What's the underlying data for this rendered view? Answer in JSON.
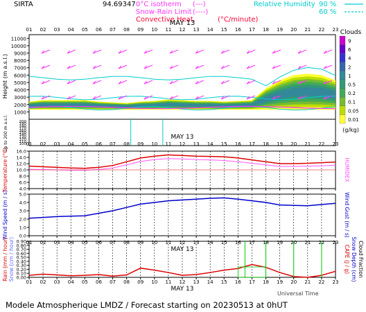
{
  "header": {
    "site": "SIRTA",
    "site_code": "94.69347",
    "legend": [
      {
        "label": "0°C isotherm",
        "marker": "(---)",
        "color": "#ff33ff"
      },
      {
        "label": "Snow-Rain Limit",
        "marker": "(----)",
        "color": "#ff33ff"
      },
      {
        "label": "Convective Heat.",
        "marker": "(°C/minute)",
        "color": "#ff0033"
      },
      {
        "label": "Relative Humidity",
        "values": [
          "90 %",
          "60 %"
        ],
        "color": "#00cccc"
      }
    ]
  },
  "footer": {
    "title": "Modele Atmospherique LMDZ / Forecast starting on 20230513 at 0hUT",
    "universal_time": "Universal Time"
  },
  "date_label": "MAY 13",
  "hours": [
    "01",
    "02",
    "03",
    "04",
    "05",
    "06",
    "07",
    "08",
    "09",
    "10",
    "11",
    "12",
    "13",
    "14",
    "15",
    "16",
    "17",
    "18",
    "19",
    "20",
    "21",
    "22",
    "23"
  ],
  "colors": {
    "temperature": "#dd0000",
    "humidex": "#ff55ff",
    "wind": "#0000cc",
    "rain": "#dd0000",
    "snow_frac": "#00cc00",
    "grid": "#000000"
  },
  "chart_data": [
    {
      "type": "heatmap",
      "name": "clouds",
      "ylabel": "Height (m a.s.l.)",
      "ylabel_low": "Up to 200 m a.s.l.",
      "yticks": [
        11000,
        10000,
        9000,
        8000,
        7000,
        6000,
        5000,
        4000,
        3000,
        2000,
        1000
      ],
      "yticks_low": [
        200,
        190,
        180,
        170,
        160,
        150,
        140,
        130,
        120,
        110,
        100
      ],
      "legend_title": "Clouds",
      "legend_unit": "(g/kg)",
      "legend_ticks": [
        "9",
        "6",
        "4",
        "2",
        "1",
        "0.5",
        "0.2",
        "0.1",
        "0.05",
        "0.01"
      ],
      "legend_colors": [
        "#cc00cc",
        "#6600cc",
        "#3333cc",
        "#3366aa",
        "#338899",
        "#339977",
        "#44aa55",
        "#77bb33",
        "#bbdd00",
        "#ffff33"
      ],
      "cloud_base_m": [
        1300,
        1300,
        1300,
        1300,
        1300,
        1300,
        1300,
        1300,
        1300,
        1300,
        1300,
        1300,
        1300,
        1300,
        1300,
        1300,
        1300,
        1300,
        1300,
        1300,
        1300,
        1300,
        1300
      ],
      "cloud_top_m": [
        2400,
        2600,
        2600,
        2600,
        2600,
        2400,
        2300,
        2200,
        2400,
        2500,
        2700,
        2600,
        2500,
        2500,
        2400,
        2500,
        2600,
        4200,
        5300,
        6000,
        6200,
        6000,
        5300
      ]
    },
    {
      "type": "line",
      "name": "temperature",
      "ylabel": "Temperature (°C)",
      "ylabel_right": "HUMIDEX",
      "ylim": [
        4,
        16
      ],
      "yticks": [
        "16.0",
        "14.0",
        "12.0",
        "10.0",
        "8.0",
        "6.0",
        "4.0"
      ],
      "series": [
        {
          "values": [
            11.2,
            11.0,
            10.8,
            10.6,
            10.5,
            10.8,
            11.4,
            12.6,
            13.8,
            14.4,
            14.8,
            14.6,
            14.4,
            14.3,
            14.2,
            13.8,
            13.2,
            12.6,
            12.0,
            12.0,
            12.1,
            12.3,
            12.5
          ]
        },
        {
          "values": [
            10.2,
            10.1,
            10.0,
            9.9,
            9.9,
            10.1,
            10.6,
            11.6,
            12.7,
            13.3,
            13.6,
            13.5,
            13.3,
            13.2,
            13.0,
            12.6,
            12.1,
            11.6,
            11.1,
            11.1,
            11.2,
            11.3,
            11.5
          ]
        }
      ]
    },
    {
      "type": "line",
      "name": "wind",
      "ylabel": "Wind Speed (m / s)",
      "ylabel_right": "Wind Gust (m / s)",
      "ylim": [
        0,
        5
      ],
      "yticks": [
        "5.0",
        "4.0",
        "3.0",
        "2.0",
        "1.0",
        "0.0"
      ],
      "series": [
        {
          "values": [
            2.1,
            2.2,
            2.3,
            2.35,
            2.4,
            2.7,
            3.0,
            3.4,
            3.8,
            4.0,
            4.2,
            4.3,
            4.4,
            4.5,
            4.55,
            4.4,
            4.2,
            4.0,
            3.7,
            3.65,
            3.6,
            3.75,
            3.9
          ]
        }
      ]
    },
    {
      "type": "line",
      "name": "precipitation",
      "ylabel": "Rain (mm / hour)",
      "ylabel2": "Snow (cm / hour)",
      "ylabel_right": "CAPE (J / g)",
      "ylabel_right2": "Snow Depth (cm)",
      "ylabel_right3": "Cloud Fraction",
      "ylim": [
        0,
        0.9
      ],
      "yticks": [
        "0.90",
        "0.80",
        "0.70",
        "0.60",
        "0.50",
        "0.40",
        "0.30",
        "0.20",
        "0.10",
        "0.00"
      ],
      "series": [
        {
          "values": [
            0.05,
            0.08,
            0.06,
            0.04,
            0.05,
            0.07,
            0.03,
            0.06,
            0.23,
            0.18,
            0.12,
            0.05,
            0.07,
            0.12,
            0.18,
            0.22,
            0.32,
            0.25,
            0.12,
            0.02,
            0.0,
            0.05,
            0.15
          ]
        }
      ],
      "cloud_fraction_bars": [
        16.5,
        18,
        20,
        22
      ]
    }
  ]
}
